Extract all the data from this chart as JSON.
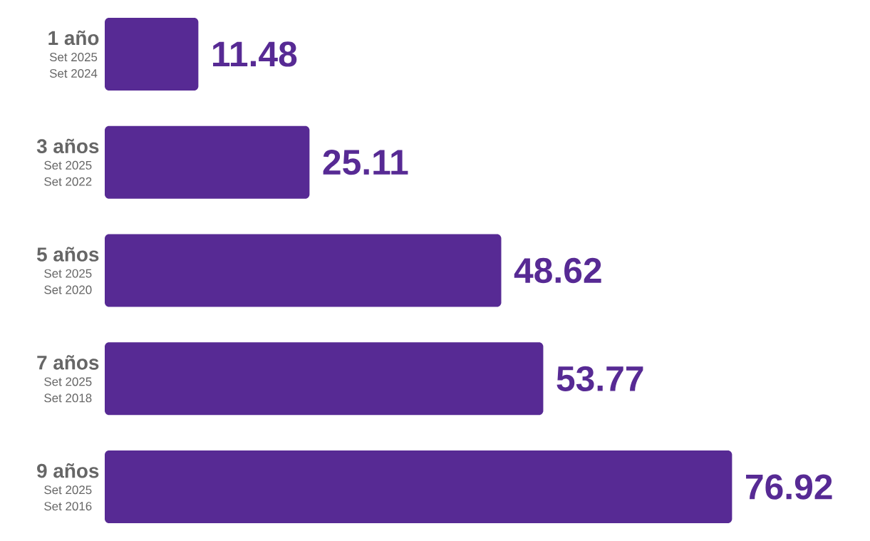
{
  "chart_data": {
    "type": "bar",
    "orientation": "horizontal",
    "categories": [
      "1 año",
      "3 años",
      "5 años",
      "7 años",
      "9 años"
    ],
    "values": [
      11.48,
      25.11,
      48.62,
      53.77,
      76.92
    ],
    "color": "#572a94",
    "data_labels": true,
    "annotations": [
      "Set 2025",
      "Set 2024",
      "Set 2025",
      "Set 2022",
      "Set 2025",
      "Set 2020",
      "Set 2025",
      "Set 2018",
      "Set 2025",
      "Set 2016"
    ]
  }
}
